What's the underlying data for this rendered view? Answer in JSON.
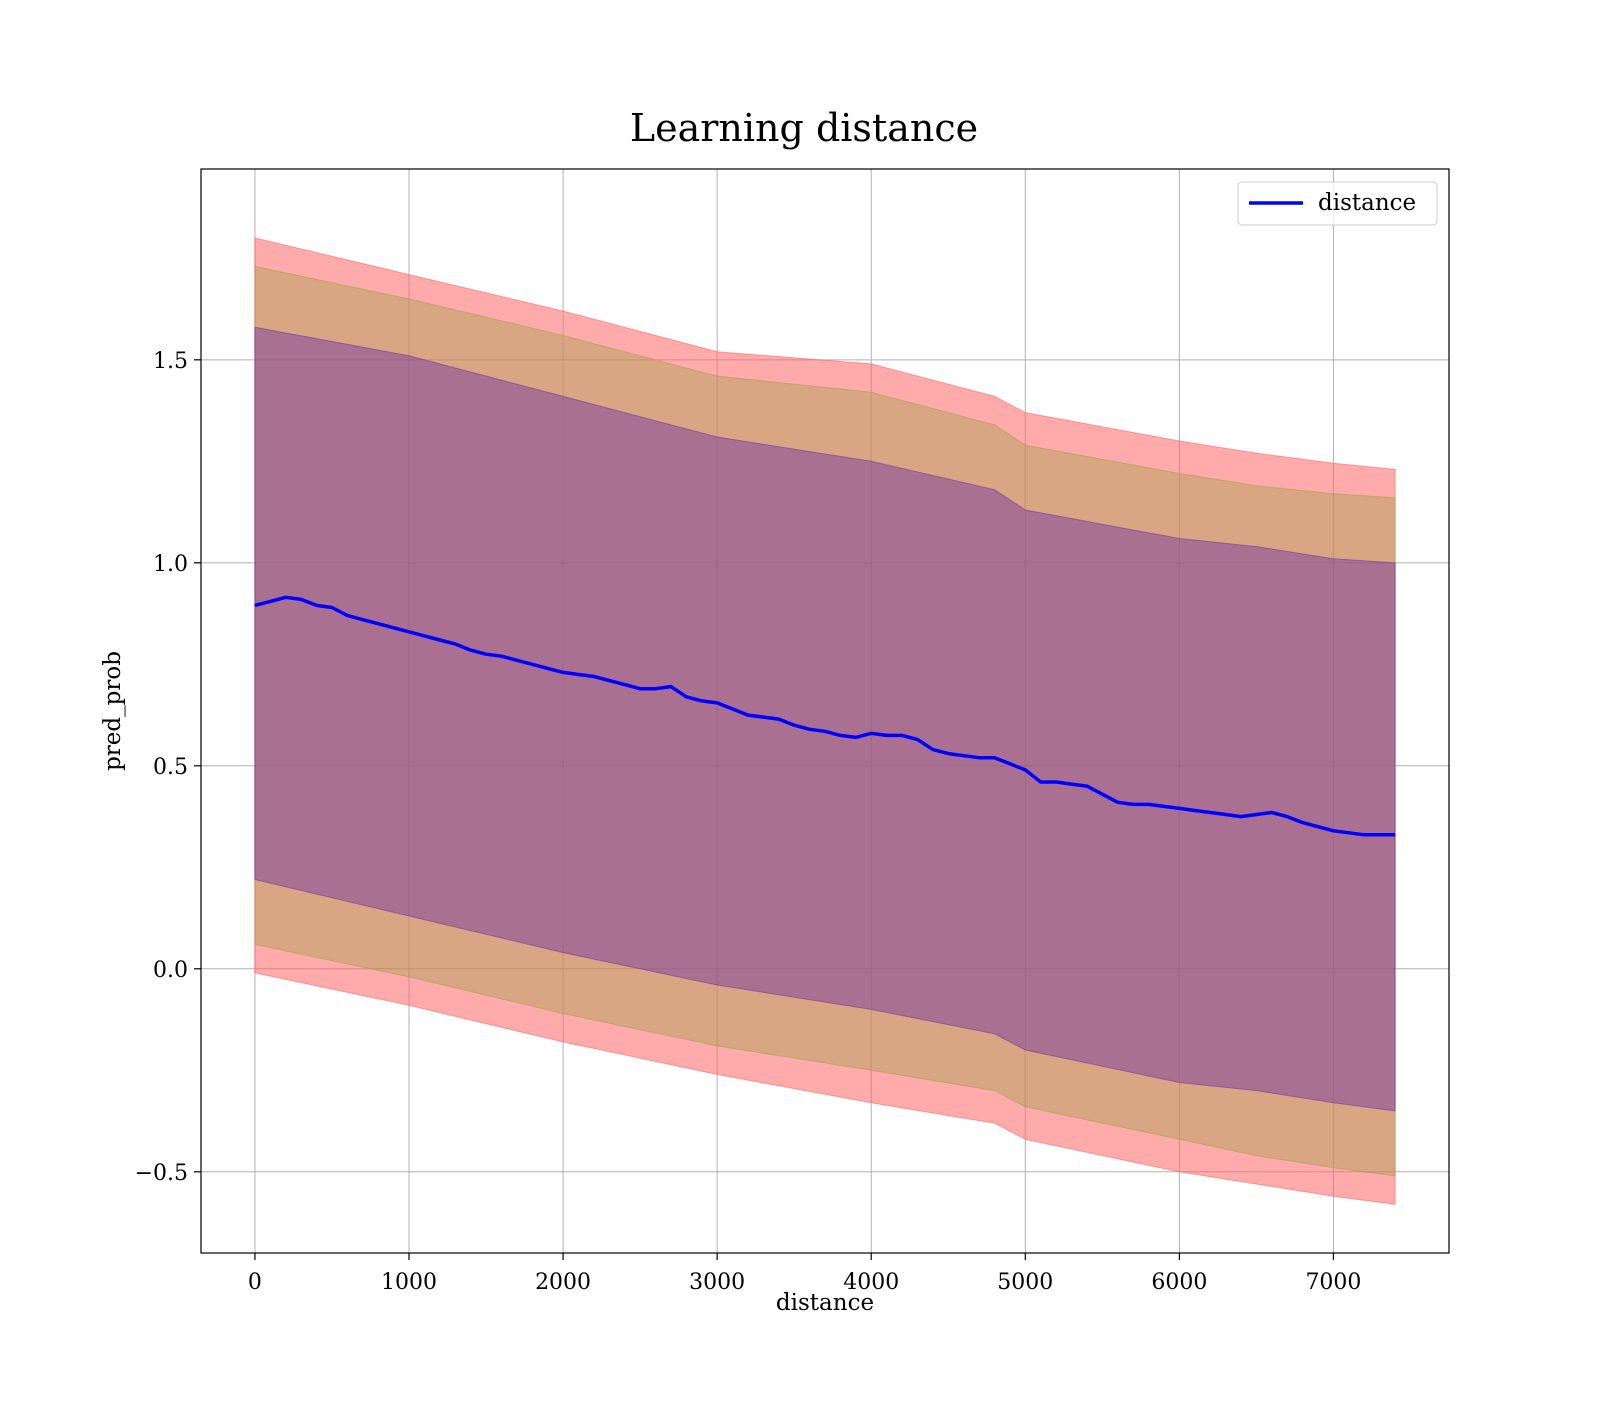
{
  "chart_data": {
    "type": "line",
    "title": "Learning distance",
    "xlabel": "distance",
    "ylabel": "pred_prob",
    "xlim": [
      -350,
      7750
    ],
    "ylim": [
      -0.7,
      1.97
    ],
    "xticks": [
      {
        "value": 0,
        "label": "0"
      },
      {
        "value": 1000,
        "label": "1000"
      },
      {
        "value": 2000,
        "label": "2000"
      },
      {
        "value": 3000,
        "label": "3000"
      },
      {
        "value": 4000,
        "label": "4000"
      },
      {
        "value": 5000,
        "label": "5000"
      },
      {
        "value": 6000,
        "label": "6000"
      },
      {
        "value": 7000,
        "label": "7000"
      }
    ],
    "yticks": [
      {
        "value": -0.5,
        "label": "−0.5"
      },
      {
        "value": 0.0,
        "label": "0.0"
      },
      {
        "value": 0.5,
        "label": "0.5"
      },
      {
        "value": 1.0,
        "label": "1.0"
      },
      {
        "value": 1.5,
        "label": "1.5"
      }
    ],
    "grid": true,
    "legend": {
      "position": "top-right",
      "entries": [
        {
          "label": "distance",
          "color": "#0000ff"
        }
      ]
    },
    "series": [
      {
        "name": "distance",
        "color": "#0000ff",
        "x": [
          0,
          100,
          200,
          300,
          400,
          500,
          600,
          700,
          800,
          900,
          1000,
          1100,
          1200,
          1300,
          1400,
          1500,
          1600,
          1700,
          1800,
          1900,
          2000,
          2100,
          2200,
          2300,
          2400,
          2500,
          2600,
          2700,
          2800,
          2900,
          3000,
          3100,
          3200,
          3300,
          3400,
          3500,
          3600,
          3700,
          3800,
          3900,
          4000,
          4100,
          4200,
          4300,
          4400,
          4500,
          4600,
          4700,
          4800,
          4900,
          5000,
          5100,
          5200,
          5300,
          5400,
          5500,
          5600,
          5700,
          5800,
          5900,
          6000,
          6100,
          6200,
          6300,
          6400,
          6500,
          6600,
          6700,
          6800,
          6900,
          7000,
          7100,
          7200,
          7300,
          7400
        ],
        "y": [
          0.895,
          0.905,
          0.915,
          0.91,
          0.895,
          0.89,
          0.87,
          0.86,
          0.85,
          0.84,
          0.83,
          0.82,
          0.81,
          0.8,
          0.785,
          0.775,
          0.77,
          0.76,
          0.75,
          0.74,
          0.73,
          0.725,
          0.72,
          0.71,
          0.7,
          0.69,
          0.69,
          0.695,
          0.67,
          0.66,
          0.655,
          0.64,
          0.625,
          0.62,
          0.615,
          0.6,
          0.59,
          0.585,
          0.575,
          0.57,
          0.58,
          0.575,
          0.575,
          0.565,
          0.54,
          0.53,
          0.525,
          0.52,
          0.52,
          0.505,
          0.49,
          0.46,
          0.46,
          0.455,
          0.45,
          0.43,
          0.41,
          0.405,
          0.405,
          0.4,
          0.395,
          0.39,
          0.385,
          0.38,
          0.375,
          0.38,
          0.385,
          0.375,
          0.36,
          0.35,
          0.34,
          0.335,
          0.33,
          0.33,
          0.33
        ]
      }
    ],
    "bands": [
      {
        "name": "outer band",
        "color": "#ff6666",
        "opacity": 0.55,
        "x": [
          0,
          1000,
          2000,
          3000,
          4000,
          4800,
          5000,
          6000,
          6500,
          7000,
          7400
        ],
        "upper": [
          1.8,
          1.71,
          1.62,
          1.52,
          1.49,
          1.41,
          1.37,
          1.3,
          1.27,
          1.245,
          1.23
        ],
        "lower": [
          -0.01,
          -0.09,
          -0.18,
          -0.26,
          -0.33,
          -0.38,
          -0.42,
          -0.5,
          -0.53,
          -0.56,
          -0.58
        ]
      },
      {
        "name": "middle band",
        "color": "#a8a050",
        "opacity": 0.45,
        "x": [
          0,
          1000,
          2000,
          3000,
          4000,
          4800,
          5000,
          6000,
          6500,
          7000,
          7400
        ],
        "upper": [
          1.73,
          1.65,
          1.56,
          1.46,
          1.42,
          1.34,
          1.29,
          1.22,
          1.19,
          1.17,
          1.16
        ],
        "lower": [
          0.06,
          -0.02,
          -0.11,
          -0.19,
          -0.25,
          -0.3,
          -0.34,
          -0.42,
          -0.46,
          -0.49,
          -0.51
        ]
      },
      {
        "name": "inner band",
        "color": "#7a3aa0",
        "opacity": 0.5,
        "x": [
          0,
          1000,
          2000,
          3000,
          4000,
          4800,
          5000,
          6000,
          6500,
          7000,
          7400
        ],
        "upper": [
          1.58,
          1.51,
          1.41,
          1.31,
          1.25,
          1.18,
          1.13,
          1.06,
          1.04,
          1.01,
          1.0
        ],
        "lower": [
          0.22,
          0.13,
          0.04,
          -0.04,
          -0.1,
          -0.16,
          -0.2,
          -0.28,
          -0.3,
          -0.33,
          -0.35
        ]
      }
    ]
  }
}
